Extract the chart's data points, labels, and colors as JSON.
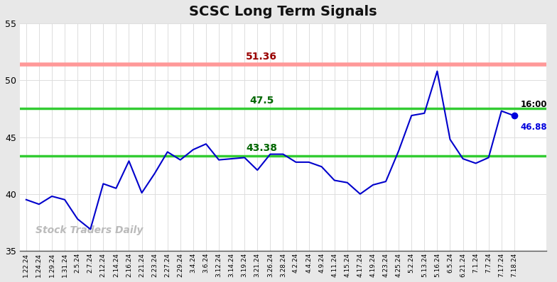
{
  "title": "SCSC Long Term Signals",
  "watermark": "Stock Traders Daily",
  "x_labels": [
    "1.22.24",
    "1.24.24",
    "1.29.24",
    "1.31.24",
    "2.5.24",
    "2.7.24",
    "2.12.24",
    "2.14.24",
    "2.16.24",
    "2.21.24",
    "2.23.24",
    "2.27.24",
    "2.29.24",
    "3.4.24",
    "3.6.24",
    "3.12.24",
    "3.14.24",
    "3.19.24",
    "3.21.24",
    "3.26.24",
    "3.28.24",
    "4.2.24",
    "4.4.24",
    "4.9.24",
    "4.11.24",
    "4.15.24",
    "4.17.24",
    "4.19.24",
    "4.23.24",
    "4.25.24",
    "5.2.24",
    "5.13.24",
    "5.16.24",
    "6.5.24",
    "6.21.24",
    "7.1.24",
    "7.7.24",
    "7.17.24",
    "7.18.24"
  ],
  "y_values": [
    39.5,
    39.1,
    39.8,
    39.5,
    37.8,
    36.9,
    40.9,
    40.5,
    42.9,
    40.1,
    41.8,
    43.7,
    43.0,
    43.9,
    44.4,
    43.0,
    43.1,
    43.2,
    42.1,
    43.5,
    43.5,
    42.8,
    42.8,
    42.4,
    41.2,
    41.0,
    40.0,
    40.8,
    41.1,
    43.8,
    46.9,
    47.1,
    50.8,
    44.8,
    43.1,
    42.7,
    43.2,
    47.3,
    46.88
  ],
  "red_line": 51.36,
  "green_line_upper": 47.5,
  "green_line_lower": 43.38,
  "ylim": [
    35,
    55
  ],
  "yticks": [
    35,
    40,
    45,
    50,
    55
  ],
  "red_line_label": "51.36",
  "green_upper_label": "47.5",
  "green_lower_label": "43.38",
  "last_label_time": "16:00",
  "last_value": "46.88",
  "line_color": "#0000cc",
  "red_line_color": "#ff9999",
  "red_line_border_color": "#cc0000",
  "green_line_color": "#33cc33",
  "red_label_color": "#990000",
  "green_label_color": "#006600",
  "last_dot_color": "#0000dd",
  "background_color": "#e8e8e8",
  "plot_bg_color": "#ffffff",
  "watermark_color": "#bbbbbb",
  "title_color": "#111111"
}
